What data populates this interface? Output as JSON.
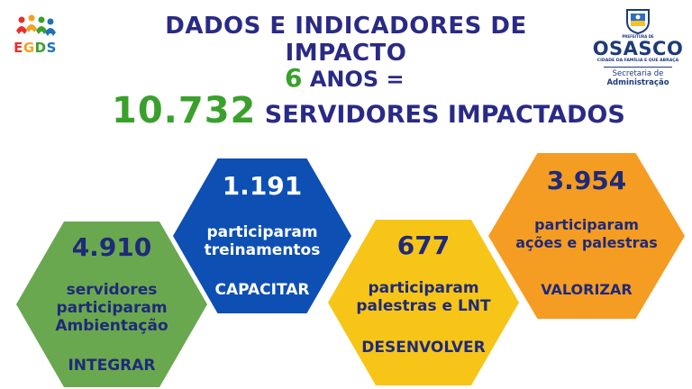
{
  "header": {
    "title": "DADOS E INDICADORES DE IMPACTO",
    "years_number": "6",
    "years_text": "ANOS =",
    "total_number": "10.732",
    "total_text": "SERVIDORES IMPACTADOS"
  },
  "logos": {
    "egds": {
      "letters": [
        "E",
        "G",
        "D",
        "S"
      ],
      "colors": [
        "#e6312c",
        "#f4a11f",
        "#3aa02c",
        "#1e70b8"
      ]
    },
    "osasco": {
      "prefeitura": "PREFEITURA DE",
      "name": "OSASCO",
      "tagline": "CIDADE DA FAMÍLIA E QUE ABRAÇA",
      "secretaria": "Secretaria de",
      "administracao": "Administração"
    }
  },
  "indicators": [
    {
      "value": "4.910",
      "lines": [
        "servidores",
        "participaram",
        "Ambientação"
      ],
      "action": "INTEGRAR",
      "color": "#6aa84f"
    },
    {
      "value": "1.191",
      "lines": [
        "participaram",
        "treinamentos"
      ],
      "action": "CAPACITAR",
      "color": "#0d4fb3"
    },
    {
      "value": "677",
      "lines": [
        "participaram",
        "palestras e LNT"
      ],
      "action": "DESENVOLVER",
      "color": "#f7c518"
    },
    {
      "value": "3.954",
      "lines": [
        "participaram",
        "ações e palestras"
      ],
      "action": "VALORIZAR",
      "color": "#f59c23"
    }
  ],
  "colors": {
    "navy": "#2a2a86",
    "green": "#3aa02c"
  }
}
